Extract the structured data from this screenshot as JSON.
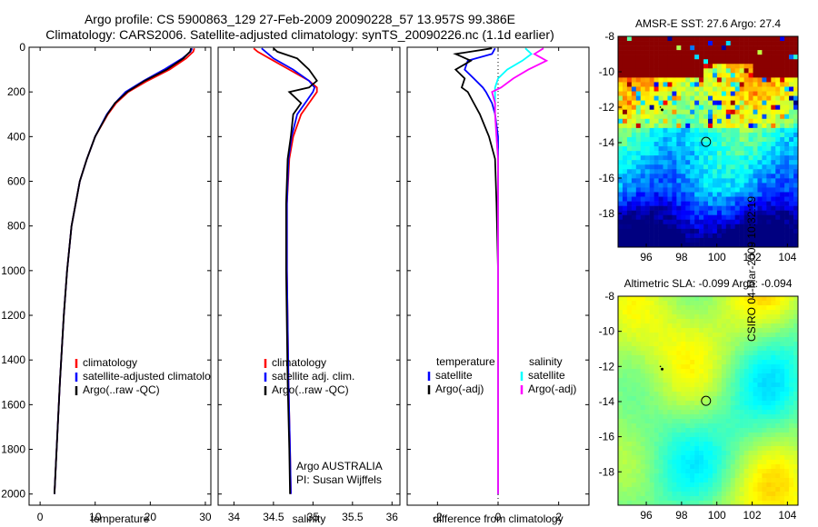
{
  "title": {
    "line1": "Argo profile: CS 5900863_129 27-Feb-2009 20090228_57 13.957S 99.386E",
    "line2": "Climatology: CARS2006. Satellite-adjusted climatology: synTS_20090226.nc (1.1d earlier)"
  },
  "stamp": "CSIRO 04-Mar-2009 10:32:19",
  "colors": {
    "climatology": "#ff0000",
    "satellite": "#0000ff",
    "argo": "#000000",
    "sat_salinity": "#00ffff",
    "argo_salinity": "#ff00ff"
  },
  "chart_data": [
    {
      "type": "line",
      "id": "temperature",
      "xlabel": "temperature",
      "ylabel": "",
      "xlim": [
        -2,
        31
      ],
      "ylim": [
        2050,
        0
      ],
      "xticks": [
        0,
        10,
        20,
        30
      ],
      "yticks": [
        0,
        200,
        400,
        600,
        800,
        1000,
        1200,
        1400,
        1600,
        1800,
        2000
      ],
      "y": [
        5,
        20,
        50,
        100,
        150,
        200,
        250,
        300,
        400,
        500,
        600,
        800,
        1000,
        1200,
        1500,
        1800,
        2000
      ],
      "series": [
        {
          "name": "climatology",
          "color": "#ff0000",
          "values": [
            28.0,
            27.8,
            26.5,
            23.5,
            19.5,
            16.0,
            13.8,
            12.3,
            10.0,
            8.5,
            7.2,
            5.7,
            4.9,
            4.3,
            3.6,
            3.0,
            2.6
          ]
        },
        {
          "name": "satellite-adjusted climatology",
          "color": "#0000ff",
          "values": [
            27.6,
            27.3,
            25.8,
            22.5,
            18.8,
            15.5,
            13.6,
            12.1,
            10.0,
            8.5,
            7.2,
            5.7,
            4.9,
            4.3,
            3.6,
            3.0,
            2.6
          ]
        },
        {
          "name": "Argo(..raw -QC)",
          "color": "#000000",
          "values": [
            27.4,
            27.2,
            26.0,
            23.0,
            19.0,
            15.8,
            13.6,
            12.2,
            10.0,
            8.5,
            7.2,
            5.7,
            4.9,
            4.3,
            3.6,
            3.0,
            2.6
          ]
        }
      ],
      "legend": [
        "climatology",
        "satellite-adjusted climatolo",
        "Argo(..raw -QC)"
      ]
    },
    {
      "type": "line",
      "id": "salinity",
      "xlabel": "salinity",
      "xlim": [
        33.8,
        36.1
      ],
      "ylim": [
        2050,
        0
      ],
      "xticks": [
        34,
        34.5,
        35,
        35.5,
        36
      ],
      "y": [
        5,
        20,
        50,
        100,
        150,
        180,
        200,
        250,
        300,
        400,
        500,
        700,
        1000,
        1500,
        1800,
        2000
      ],
      "series": [
        {
          "name": "climatology",
          "color": "#ff0000",
          "values": [
            34.25,
            34.3,
            34.45,
            34.7,
            34.95,
            35.05,
            35.05,
            34.95,
            34.85,
            34.75,
            34.7,
            34.67,
            34.67,
            34.69,
            34.71,
            34.72
          ]
        },
        {
          "name": "satellite adj. clim.",
          "color": "#0000ff",
          "values": [
            34.35,
            34.4,
            34.5,
            34.75,
            34.95,
            35.02,
            35.0,
            34.9,
            34.8,
            34.73,
            34.69,
            34.67,
            34.67,
            34.69,
            34.71,
            34.72
          ]
        },
        {
          "name": "Argo(..raw -QC)",
          "color": "#000000",
          "values": [
            34.5,
            34.55,
            34.8,
            34.95,
            35.05,
            34.95,
            34.7,
            34.85,
            34.75,
            34.72,
            34.68,
            34.66,
            34.66,
            34.68,
            34.7,
            34.71
          ]
        }
      ],
      "legend": [
        "climatology",
        "satellite adj. clim.",
        "Argo(..raw -QC)"
      ],
      "annotations": [
        "Argo AUSTRALIA",
        "PI: Susan Wijffels"
      ]
    },
    {
      "type": "line",
      "id": "difference",
      "xlabel": "difference from climatology",
      "xlim": [
        -3,
        3
      ],
      "ylim": [
        2050,
        0
      ],
      "xticks": [
        -2,
        0,
        2
      ],
      "y": [
        5,
        30,
        60,
        100,
        140,
        180,
        200,
        250,
        300,
        400,
        500,
        700,
        1000,
        1500,
        2000
      ],
      "series": [
        {
          "name": "temperature satellite",
          "color": "#0000ff",
          "values": [
            -0.1,
            -0.2,
            -1.0,
            -1.1,
            -0.8,
            -0.5,
            -0.4,
            -0.2,
            -0.1,
            0.0,
            0.0,
            0.0,
            0.0,
            0.0,
            0.0
          ]
        },
        {
          "name": "temperature Argo(-adj)",
          "color": "#000000",
          "values": [
            -0.2,
            -1.4,
            -0.9,
            -1.4,
            -1.1,
            -1.2,
            -1.0,
            -0.8,
            -0.6,
            -0.3,
            -0.1,
            -0.05,
            0.0,
            0.0,
            0.0
          ]
        },
        {
          "name": "salinity satellite",
          "color": "#00ffff",
          "values": [
            0.9,
            1.1,
            0.8,
            0.3,
            0.0,
            -0.1,
            -0.1,
            -0.1,
            -0.1,
            -0.05,
            0.0,
            0.0,
            0.0,
            0.0,
            0.0
          ]
        },
        {
          "name": "salinity Argo(-adj)",
          "color": "#ff00ff",
          "values": [
            1.5,
            1.2,
            1.6,
            1.0,
            0.5,
            0.1,
            -0.2,
            -0.1,
            -0.1,
            -0.05,
            0.0,
            0.0,
            0.0,
            0.0,
            0.0
          ]
        }
      ],
      "legend_headers": [
        "temperature",
        "salinity"
      ],
      "legend": [
        "satellite",
        "Argo(-adj)",
        "satellite",
        "Argo(-adj)"
      ]
    },
    {
      "type": "heatmap",
      "id": "sst",
      "title": "AMSR-E SST: 27.6  Argo: 27.4",
      "xlim": [
        94.4,
        104.6
      ],
      "ylim": [
        -19.9,
        -8.0
      ],
      "xticks": [
        96,
        98,
        100,
        102,
        104
      ],
      "yticks": [
        -8,
        -10,
        -12,
        -14,
        -16,
        -18
      ],
      "argo_position": [
        99.386,
        -13.957
      ]
    },
    {
      "type": "heatmap",
      "id": "sla",
      "title": "Altimetric SLA: -0.099  Argo: -0.094",
      "xlim": [
        94.4,
        104.6
      ],
      "ylim": [
        -19.9,
        -8.0
      ],
      "xticks": [
        96,
        98,
        100,
        102,
        104
      ],
      "yticks": [
        -8,
        -10,
        -12,
        -14,
        -16,
        -18
      ],
      "argo_position": [
        99.386,
        -13.957
      ]
    }
  ]
}
